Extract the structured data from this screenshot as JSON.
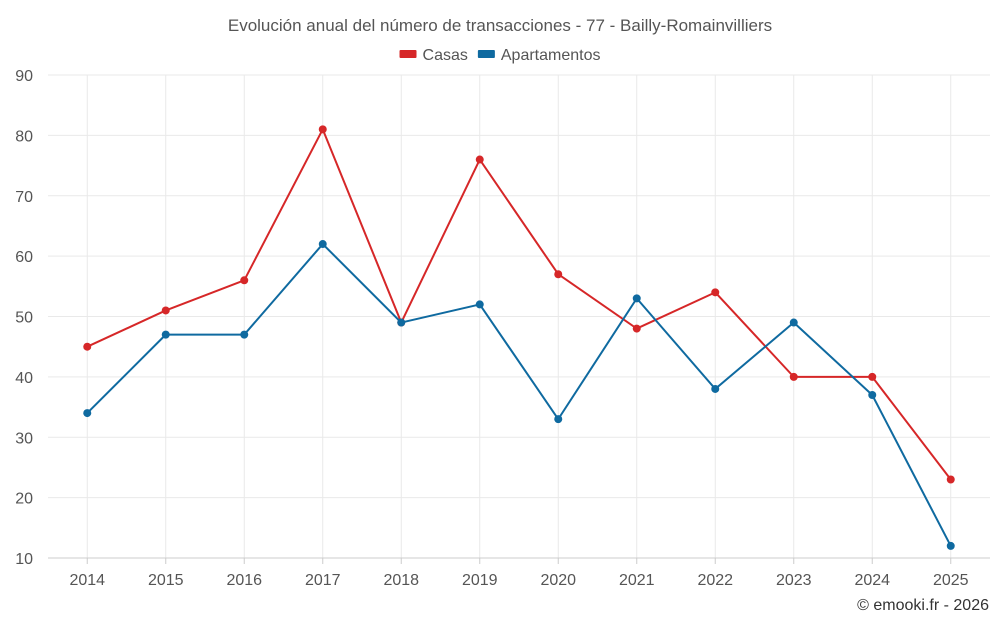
{
  "chart_data": {
    "type": "line",
    "title": "Evolución anual del número de transacciones - 77 - Bailly-Romainvilliers",
    "categories": [
      "2014",
      "2015",
      "2016",
      "2017",
      "2018",
      "2019",
      "2020",
      "2021",
      "2022",
      "2023",
      "2024",
      "2025"
    ],
    "series": [
      {
        "name": "Casas",
        "color": "#d62728",
        "values": [
          45,
          51,
          56,
          81,
          49,
          76,
          57,
          48,
          54,
          40,
          40,
          23
        ]
      },
      {
        "name": "Apartamentos",
        "color": "#0f6aa0",
        "values": [
          34,
          47,
          47,
          62,
          49,
          52,
          33,
          53,
          38,
          49,
          37,
          12
        ]
      }
    ],
    "ylim": [
      10,
      90
    ],
    "yticks": [
      10,
      20,
      30,
      40,
      50,
      60,
      70,
      80,
      90
    ],
    "grid": true,
    "legend": "top-center",
    "xlabel": "",
    "ylabel": ""
  },
  "credit": "© emooki.fr - 2026"
}
